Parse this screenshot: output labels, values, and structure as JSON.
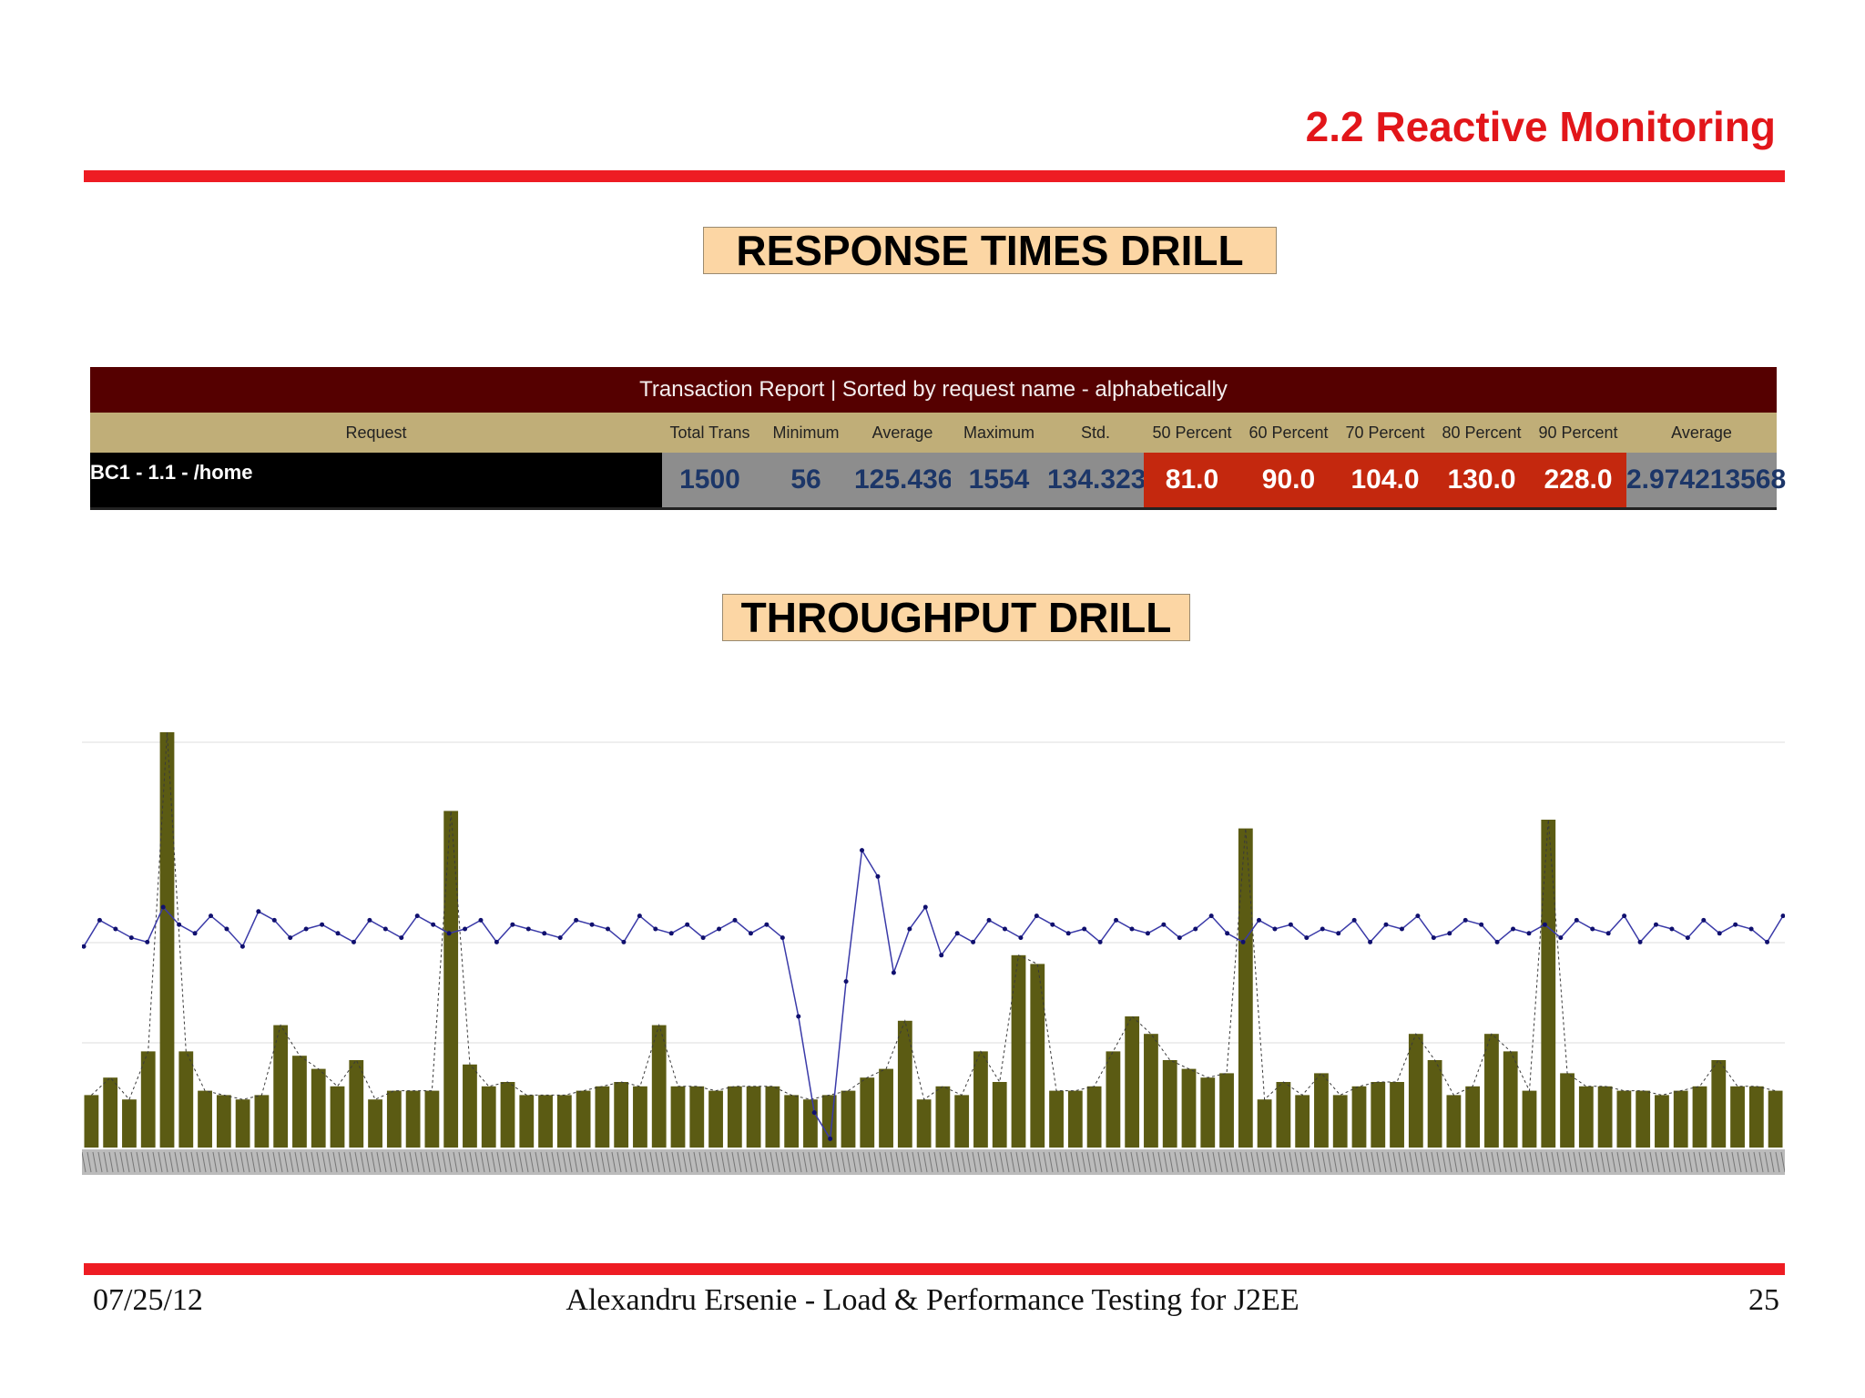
{
  "slide": {
    "title": "2.2 Reactive Monitoring",
    "section1": "RESPONSE TIMES DRILL",
    "section2": "THROUGHPUT DRILL"
  },
  "report": {
    "title": "Transaction Report | Sorted by request name - alphabetically",
    "headers": [
      "Request",
      "Total Trans",
      "Minimum",
      "Average",
      "Maximum",
      "Std. Deviation",
      "50 Percent",
      "60 Percent",
      "70 Percent",
      "80 Percent",
      "90 Percent",
      "Average Transactions"
    ],
    "row": {
      "request": "BC1 - 1.1 - /home",
      "values": [
        "1500",
        "56",
        "125.436",
        "1554",
        "134.323",
        "81.0",
        "90.0",
        "104.0",
        "130.0",
        "228.0",
        "2.974213568"
      ]
    },
    "colors": {
      "title_bg": "#550000",
      "header_bg": "#c0ae78",
      "gray_cell": "#8d8d8d",
      "red_cell": "#c4280e"
    }
  },
  "chart_data": {
    "type": "bar",
    "series": [
      {
        "values": [
          46,
          52,
          50,
          48,
          47,
          55,
          51,
          49,
          53,
          50,
          46,
          54,
          52,
          48,
          50,
          51,
          49,
          47,
          52,
          50,
          48,
          53,
          51,
          49,
          50,
          52,
          47,
          51,
          50,
          49,
          48,
          52,
          51,
          50,
          47,
          53,
          50,
          49,
          51,
          48,
          50,
          52,
          49,
          51,
          48,
          30,
          8,
          2,
          38,
          68,
          62,
          40,
          50,
          55,
          44,
          49,
          47,
          52,
          50,
          48,
          53,
          51,
          49,
          50,
          47,
          52,
          50,
          49,
          51,
          48,
          50,
          53,
          49,
          47,
          52,
          50,
          51,
          48,
          50,
          49,
          52,
          47,
          51,
          50,
          53,
          48,
          49,
          52,
          51,
          47,
          50,
          49,
          51,
          48,
          52,
          50,
          49,
          53,
          47,
          51,
          50,
          48,
          52,
          49,
          51,
          50,
          47,
          53
        ]
      },
      {
        "values": [
          12,
          16,
          11,
          22,
          95,
          22,
          13,
          12,
          11,
          12,
          28,
          21,
          18,
          14,
          20,
          11,
          13,
          13,
          13,
          77,
          19,
          14,
          15,
          12,
          12,
          12,
          13,
          14,
          15,
          14,
          28,
          14,
          14,
          13,
          14,
          14,
          14,
          12,
          11,
          12,
          13,
          16,
          18,
          29,
          11,
          14,
          12,
          22,
          15,
          44,
          42,
          13,
          13,
          14,
          22,
          30,
          26,
          20,
          18,
          16,
          17,
          73,
          11,
          15,
          12,
          17,
          12,
          14,
          15,
          15,
          26,
          20,
          12,
          14,
          26,
          22,
          13,
          75,
          17,
          14,
          14,
          13,
          13,
          12,
          13,
          14,
          20,
          14,
          14,
          13
        ]
      }
    ]
  },
  "footer": {
    "date": "07/25/12",
    "author": "Alexandru Ersenie - Load & Performance Testing for J2EE",
    "page": "25"
  }
}
